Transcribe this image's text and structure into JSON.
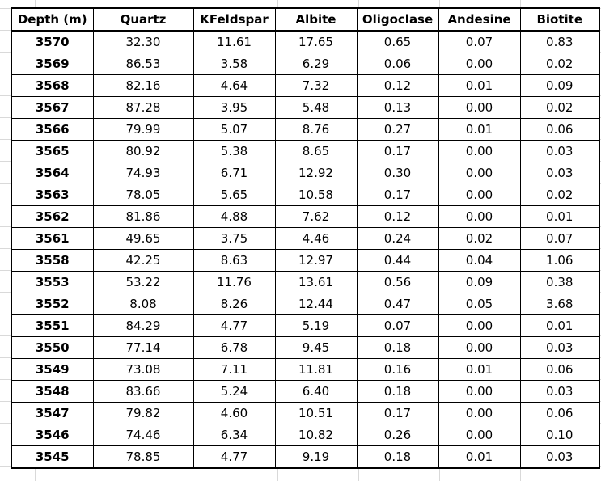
{
  "table": {
    "headers": [
      "Depth (m)",
      "Quartz",
      "KFeldspar",
      "Albite",
      "Oligoclase",
      "Andesine",
      "Biotite"
    ],
    "rows": [
      [
        "3570",
        "32.30",
        "11.61",
        "17.65",
        "0.65",
        "0.07",
        "0.83"
      ],
      [
        "3569",
        "86.53",
        "3.58",
        "6.29",
        "0.06",
        "0.00",
        "0.02"
      ],
      [
        "3568",
        "82.16",
        "4.64",
        "7.32",
        "0.12",
        "0.01",
        "0.09"
      ],
      [
        "3567",
        "87.28",
        "3.95",
        "5.48",
        "0.13",
        "0.00",
        "0.02"
      ],
      [
        "3566",
        "79.99",
        "5.07",
        "8.76",
        "0.27",
        "0.01",
        "0.06"
      ],
      [
        "3565",
        "80.92",
        "5.38",
        "8.65",
        "0.17",
        "0.00",
        "0.03"
      ],
      [
        "3564",
        "74.93",
        "6.71",
        "12.92",
        "0.30",
        "0.00",
        "0.03"
      ],
      [
        "3563",
        "78.05",
        "5.65",
        "10.58",
        "0.17",
        "0.00",
        "0.02"
      ],
      [
        "3562",
        "81.86",
        "4.88",
        "7.62",
        "0.12",
        "0.00",
        "0.01"
      ],
      [
        "3561",
        "49.65",
        "3.75",
        "4.46",
        "0.24",
        "0.02",
        "0.07"
      ],
      [
        "3558",
        "42.25",
        "8.63",
        "12.97",
        "0.44",
        "0.04",
        "1.06"
      ],
      [
        "3553",
        "53.22",
        "11.76",
        "13.61",
        "0.56",
        "0.09",
        "0.38"
      ],
      [
        "3552",
        "8.08",
        "8.26",
        "12.44",
        "0.47",
        "0.05",
        "3.68"
      ],
      [
        "3551",
        "84.29",
        "4.77",
        "5.19",
        "0.07",
        "0.00",
        "0.01"
      ],
      [
        "3550",
        "77.14",
        "6.78",
        "9.45",
        "0.18",
        "0.00",
        "0.03"
      ],
      [
        "3549",
        "73.08",
        "7.11",
        "11.81",
        "0.16",
        "0.01",
        "0.06"
      ],
      [
        "3548",
        "83.66",
        "5.24",
        "6.40",
        "0.18",
        "0.00",
        "0.03"
      ],
      [
        "3547",
        "79.82",
        "4.60",
        "10.51",
        "0.17",
        "0.00",
        "0.06"
      ],
      [
        "3546",
        "74.46",
        "6.34",
        "10.82",
        "0.26",
        "0.00",
        "0.10"
      ],
      [
        "3545",
        "78.85",
        "4.77",
        "9.19",
        "0.18",
        "0.01",
        "0.03"
      ]
    ]
  },
  "colors": {
    "border": "#000000",
    "grid": "#d9d9d9",
    "background": "#ffffff"
  }
}
